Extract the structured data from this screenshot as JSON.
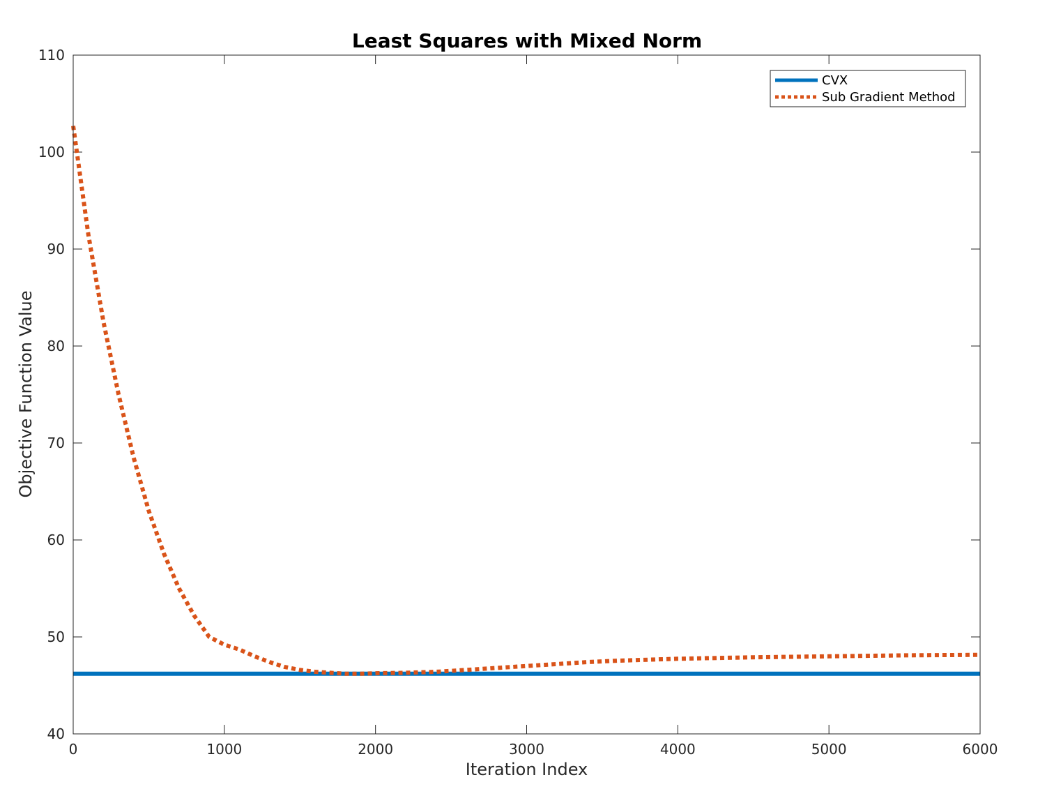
{
  "chart_data": {
    "type": "line",
    "title": "Least Squares with Mixed Norm",
    "xlabel": "Iteration Index",
    "ylabel": "Objective Function Value",
    "xlim": [
      0,
      6000
    ],
    "ylim": [
      40,
      110
    ],
    "xticks": [
      0,
      1000,
      2000,
      3000,
      4000,
      5000,
      6000
    ],
    "yticks": [
      40,
      50,
      60,
      70,
      80,
      90,
      100,
      110
    ],
    "grid": false,
    "legend_position": "top-right",
    "series": [
      {
        "name": "CVX",
        "color": "#0072BD",
        "style": "solid",
        "x": [
          0,
          6000
        ],
        "y": [
          46.2,
          46.2
        ]
      },
      {
        "name": "Sub Gradient Method",
        "color": "#D95319",
        "style": "dotted",
        "x": [
          0,
          100,
          200,
          300,
          400,
          500,
          600,
          700,
          800,
          900,
          1000,
          1100,
          1200,
          1300,
          1400,
          1500,
          1600,
          1700,
          1800,
          1900,
          2000,
          2200,
          2400,
          2600,
          2800,
          3000,
          3200,
          3400,
          3600,
          3800,
          4000,
          4500,
          5000,
          5500,
          6000
        ],
        "y": [
          102.7,
          91.5,
          82.5,
          75.0,
          68.5,
          63.0,
          58.6,
          55.0,
          52.2,
          50.0,
          49.2,
          48.7,
          48.0,
          47.4,
          46.9,
          46.6,
          46.4,
          46.3,
          46.2,
          46.2,
          46.25,
          46.3,
          46.4,
          46.6,
          46.8,
          47.0,
          47.2,
          47.4,
          47.55,
          47.65,
          47.75,
          47.9,
          48.0,
          48.1,
          48.15
        ]
      }
    ]
  }
}
